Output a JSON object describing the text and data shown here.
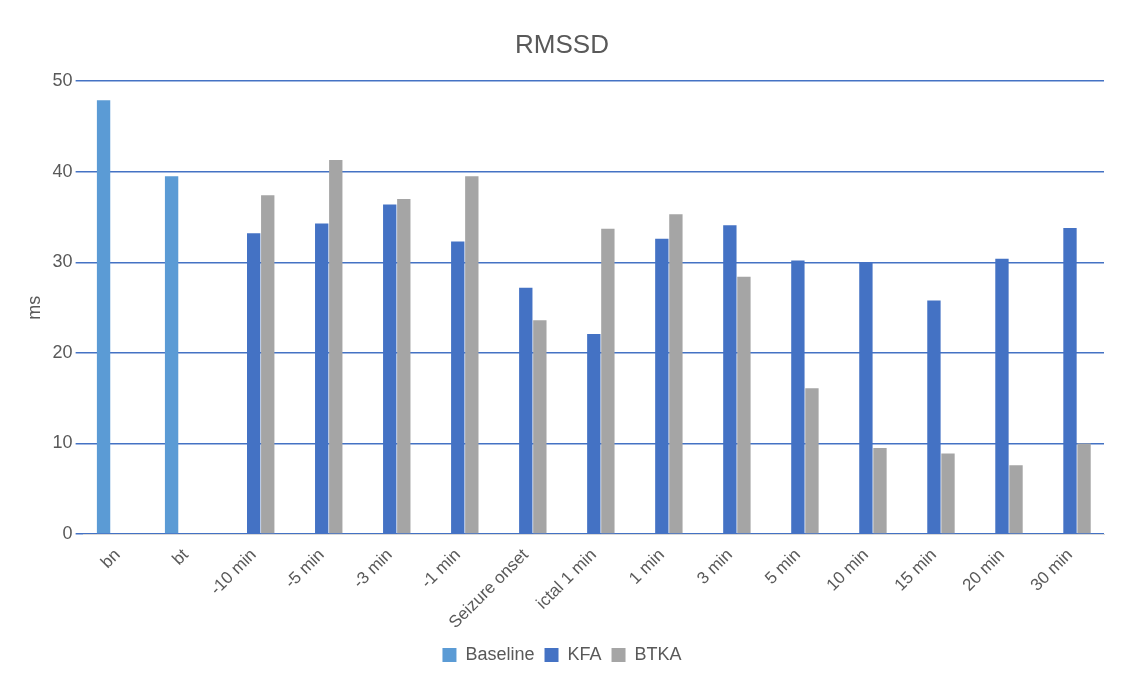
{
  "chart_data": {
    "type": "bar",
    "title": "RMSSD",
    "ylabel": "ms",
    "categories": [
      "bn",
      "bt",
      "-10 min",
      "-5 min",
      "-3 min",
      "-1 min",
      "Seizure onset",
      "ictal 1 min",
      "1 min",
      "3 min",
      "5 min",
      "10 min",
      "15 min",
      "20 min",
      "30 min"
    ],
    "series": [
      {
        "name": "Baseline",
        "color": "#5b9bd5",
        "values": [
          47.9,
          39.5,
          null,
          null,
          null,
          null,
          null,
          null,
          null,
          null,
          null,
          null,
          null,
          null,
          null
        ]
      },
      {
        "name": "KFA",
        "color": "#4472c4",
        "values": [
          null,
          null,
          33.2,
          34.3,
          36.4,
          32.3,
          27.2,
          22.1,
          32.6,
          34.1,
          30.2,
          30.0,
          25.8,
          30.4,
          33.8
        ]
      },
      {
        "name": "BTKA",
        "color": "#a5a5a5",
        "values": [
          null,
          null,
          37.4,
          41.3,
          37.0,
          39.5,
          23.6,
          33.7,
          35.3,
          28.4,
          16.1,
          9.5,
          8.9,
          7.6,
          10.0
        ]
      }
    ],
    "ylim": [
      0,
      50
    ],
    "yticks": [
      0,
      10,
      20,
      30,
      40,
      50
    ],
    "grid": "y",
    "legend": "bottom"
  }
}
